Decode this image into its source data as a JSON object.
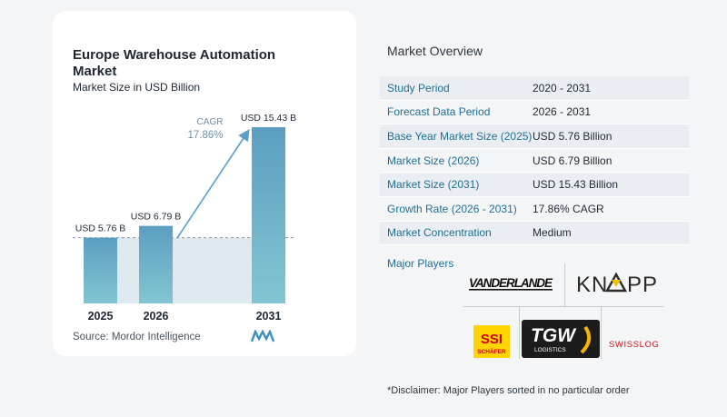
{
  "chart_data": {
    "type": "bar",
    "title": "Europe Warehouse Automation Market",
    "subtitle": "Market Size in USD Billion",
    "categories": [
      "2025",
      "2026",
      "2031"
    ],
    "values": [
      5.76,
      6.79,
      15.43
    ],
    "value_labels": [
      "USD 5.76 B",
      "USD 6.79 B",
      "USD 15.43 B"
    ],
    "cagr_label": "CAGR",
    "cagr_value": "17.86%",
    "bar_color_top": "#5f9fc0",
    "bar_color_bottom": "#7fc3d2",
    "fill_color": "#dfe9f0"
  },
  "source": "Source:  Mordor Intelligence",
  "overview": {
    "title": "Market Overview",
    "rows": [
      {
        "key": "Study Period",
        "value": "2020 - 2031"
      },
      {
        "key": "Forecast Data Period",
        "value": "2026 - 2031"
      },
      {
        "key": "Base Year Market Size (2025)",
        "value": "USD 5.76 Billion"
      },
      {
        "key": "Market Size (2026)",
        "value": "USD 6.79 Billion"
      },
      {
        "key": "Market Size (2031)",
        "value": "USD 15.43 Billion"
      },
      {
        "key": "Growth Rate (2026 - 2031)",
        "value": "17.86% CAGR"
      },
      {
        "key": "Market Concentration",
        "value": "Medium"
      }
    ]
  },
  "players": {
    "title": "Major Players",
    "logos": [
      "VANDERLANDE",
      "KNAPP",
      "SSI SCHÄFER",
      "TGW LOGISTICS",
      "SWISSLOG"
    ]
  },
  "disclaimer": "*Disclaimer: Major Players sorted in no particular order"
}
